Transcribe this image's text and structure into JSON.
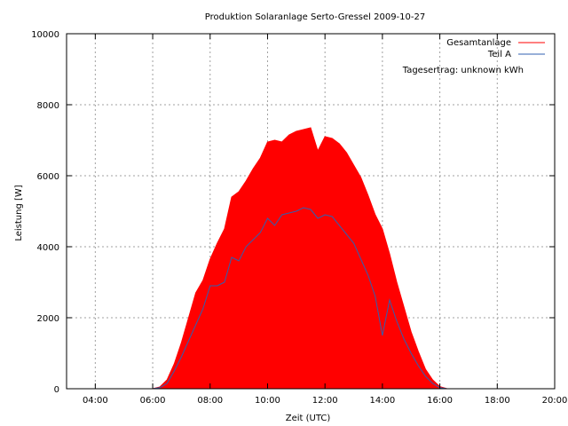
{
  "chart_data": {
    "type": "area",
    "title": "Produktion Solaranlage Serto-Gressel 2009-10-27",
    "xlabel": "Zeit (UTC)",
    "ylabel": "Leistung [W]",
    "xlim": [
      "03:00",
      "20:00"
    ],
    "ylim": [
      0,
      10000
    ],
    "xticks": [
      "04:00",
      "06:00",
      "08:00",
      "10:00",
      "12:00",
      "14:00",
      "16:00",
      "18:00",
      "20:00"
    ],
    "yticks": [
      "0",
      "2000",
      "4000",
      "6000",
      "8000",
      "10000"
    ],
    "grid": true,
    "legend_position": "top-right",
    "annotation": "Tagesertrag: unknown kWh",
    "colors": {
      "Gesamtanlage": "#ff0000",
      "Teil A": "#3060b0"
    },
    "series": [
      {
        "name": "Gesamtanlage",
        "x": [
          "06:00",
          "06:15",
          "06:30",
          "06:45",
          "07:00",
          "07:15",
          "07:30",
          "07:45",
          "08:00",
          "08:15",
          "08:30",
          "08:45",
          "09:00",
          "09:15",
          "09:30",
          "09:45",
          "10:00",
          "10:15",
          "10:30",
          "10:45",
          "11:00",
          "11:15",
          "11:30",
          "11:45",
          "12:00",
          "12:15",
          "12:30",
          "12:45",
          "13:00",
          "13:15",
          "13:30",
          "13:45",
          "14:00",
          "14:15",
          "14:30",
          "14:45",
          "15:00",
          "15:15",
          "15:30",
          "15:45",
          "16:00",
          "16:15"
        ],
        "values": [
          0,
          50,
          250,
          700,
          1300,
          2000,
          2700,
          3050,
          3650,
          4100,
          4500,
          5400,
          5550,
          5850,
          6200,
          6500,
          6950,
          7000,
          6950,
          7150,
          7250,
          7300,
          7350,
          6700,
          7100,
          7050,
          6900,
          6650,
          6300,
          5950,
          5450,
          4900,
          4500,
          3800,
          3000,
          2300,
          1600,
          1050,
          550,
          250,
          60,
          0
        ]
      },
      {
        "name": "Teil A",
        "x": [
          "06:00",
          "06:15",
          "06:30",
          "06:45",
          "07:00",
          "07:15",
          "07:30",
          "07:45",
          "08:00",
          "08:15",
          "08:30",
          "08:45",
          "09:00",
          "09:15",
          "09:30",
          "09:45",
          "10:00",
          "10:15",
          "10:30",
          "10:45",
          "11:00",
          "11:15",
          "11:30",
          "11:45",
          "12:00",
          "12:15",
          "12:30",
          "12:45",
          "13:00",
          "13:15",
          "13:30",
          "13:45",
          "14:00",
          "14:15",
          "14:30",
          "14:45",
          "15:00",
          "15:15",
          "15:30",
          "15:45",
          "16:00",
          "16:15"
        ],
        "values": [
          0,
          30,
          150,
          500,
          900,
          1350,
          1800,
          2250,
          2900,
          2900,
          3000,
          3700,
          3600,
          4000,
          4200,
          4400,
          4800,
          4600,
          4900,
          4950,
          5000,
          5100,
          5050,
          4800,
          4900,
          4850,
          4600,
          4350,
          4100,
          3650,
          3200,
          2600,
          1500,
          2500,
          1900,
          1400,
          1000,
          650,
          350,
          150,
          30,
          0
        ]
      }
    ]
  }
}
